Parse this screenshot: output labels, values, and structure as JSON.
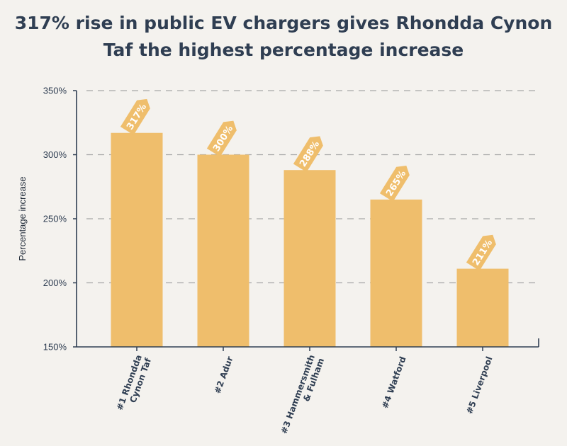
{
  "title_lines": [
    "317% rise in public EV chargers gives Rhondda Cynon",
    "Taf the highest percentage increase"
  ],
  "colors": {
    "bar": "#efbe6c",
    "tag": "#efbe6c",
    "axis": "#2f3e52",
    "grid": "#a8a8a8",
    "background": "#f4f2ee"
  },
  "chart_data": {
    "type": "bar",
    "title": "317% rise in public EV chargers gives Rhondda Cynon Taf the highest percentage increase",
    "xlabel": "",
    "ylabel": "Percentage increase",
    "ylim": [
      150,
      350
    ],
    "yticks": [
      150,
      200,
      250,
      300,
      350
    ],
    "ytick_labels": [
      "150%",
      "200%",
      "250%",
      "300%",
      "350%"
    ],
    "grid": true,
    "categories": [
      [
        "#1 Rhondda",
        "Cynon Taf"
      ],
      [
        "#2 Adur"
      ],
      [
        "#3 Hammersmith",
        "& Fulham"
      ],
      [
        "#4 Watford"
      ],
      [
        "#5 Liverpool"
      ]
    ],
    "values": [
      317,
      300,
      288,
      265,
      211
    ],
    "data_labels": [
      "317%",
      "300%",
      "288%",
      "265%",
      "211%"
    ]
  }
}
